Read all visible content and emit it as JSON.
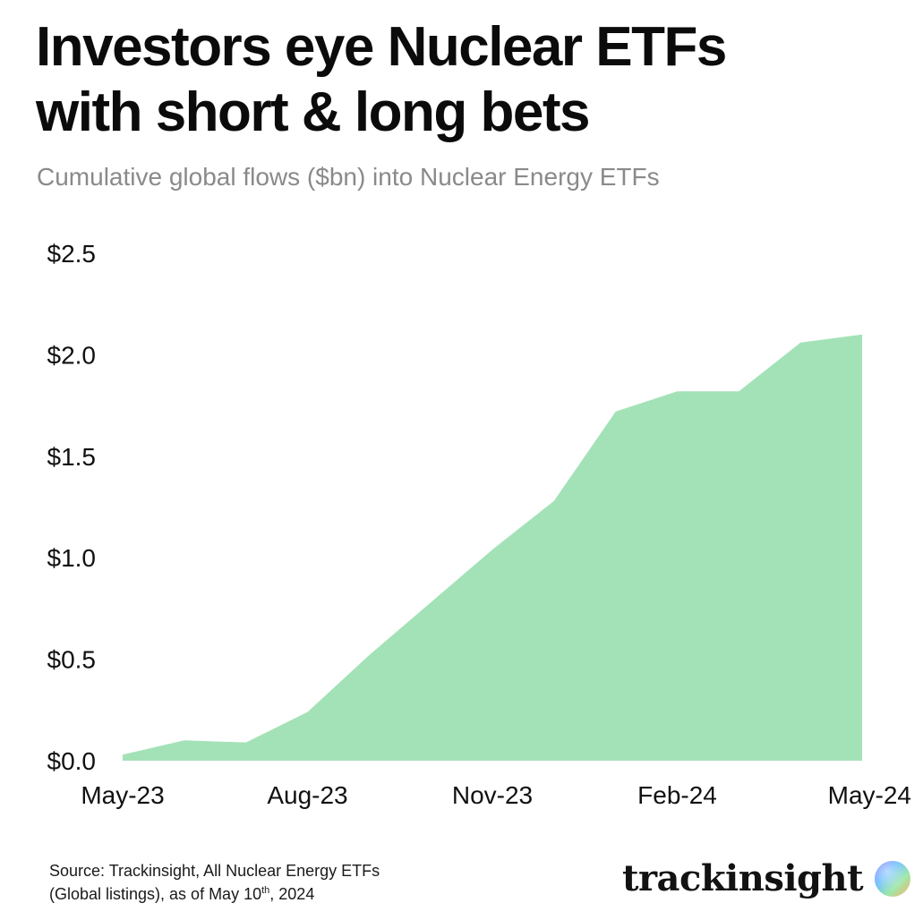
{
  "title": {
    "line1": "Investors eye Nuclear ETFs",
    "line2": "with short & long bets"
  },
  "subtitle": "Cumulative global flows ($bn) into Nuclear Energy ETFs",
  "source": {
    "line1": "Source: Trackinsight, All Nuclear Energy ETFs",
    "line2_prefix": "(Global listings), as of May 10",
    "line2_sup": "th",
    "line2_suffix": ", 2024"
  },
  "brand": {
    "name": "trackinsight",
    "logo_icon": "gradient-orb-icon"
  },
  "colors": {
    "area_fill": "#a3e2b7",
    "title": "#0b0b0b",
    "subtitle": "#8a8a8a"
  },
  "chart_data": {
    "type": "area",
    "title": "Investors eye Nuclear ETFs with short & long bets",
    "subtitle": "Cumulative global flows ($bn) into Nuclear Energy ETFs",
    "xlabel": "",
    "ylabel": "",
    "x_tick_labels": [
      "May-23",
      "Aug-23",
      "Nov-23",
      "Feb-24",
      "May-24"
    ],
    "y_tick_labels": [
      "$0.0",
      "$0.5",
      "$1.0",
      "$1.5",
      "$2.0",
      "$2.5"
    ],
    "ylim": [
      0,
      2.5
    ],
    "grid": false,
    "legend": "none",
    "x": [
      "May-23",
      "Jun-23",
      "Jul-23",
      "Aug-23",
      "Sep-23",
      "Oct-23",
      "Nov-23",
      "Dec-23",
      "Jan-24",
      "Feb-24",
      "Mar-24",
      "Apr-24",
      "May-24"
    ],
    "series": [
      {
        "values": [
          0.03,
          0.1,
          0.09,
          0.24,
          0.52,
          0.78,
          1.04,
          1.28,
          1.72,
          1.82,
          1.82,
          2.06,
          2.1
        ]
      }
    ]
  }
}
